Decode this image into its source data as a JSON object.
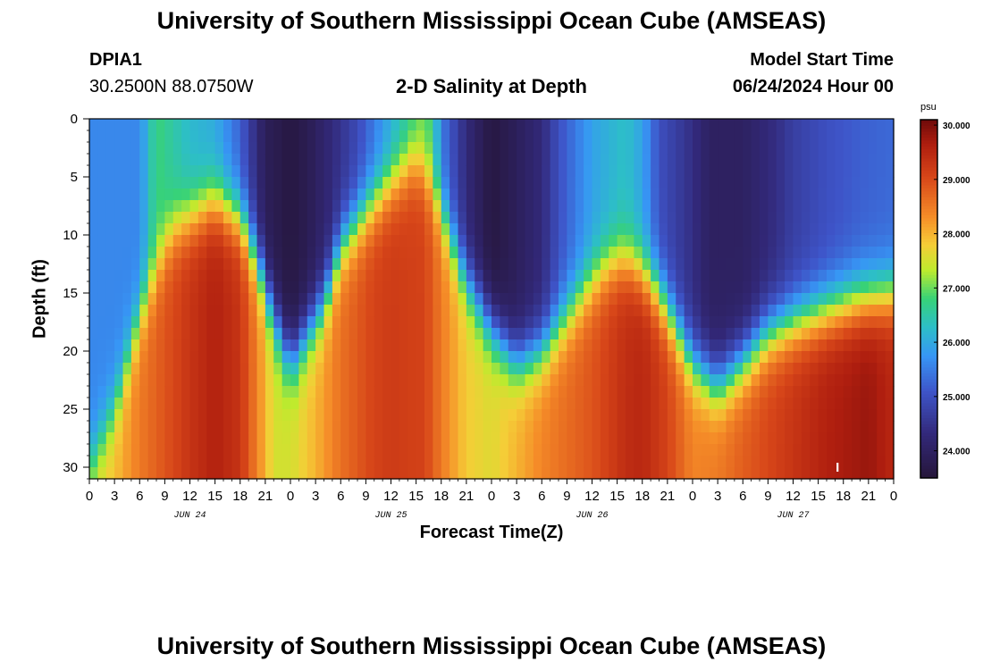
{
  "header": {
    "title": "University of Southern Mississippi Ocean Cube (AMSEAS)",
    "station_id": "DPIA1",
    "station_coords": "30.2500N  88.0750W",
    "plot_title": "2-D Salinity at Depth",
    "model_start_label": "Model Start Time",
    "model_start_value": "06/24/2024 Hour 00"
  },
  "footer": {
    "title": "University of Southern Mississippi Ocean Cube (AMSEAS)"
  },
  "chart_data": {
    "type": "heatmap",
    "title": "2-D Salinity at Depth",
    "xlabel": "Forecast Time(Z)",
    "ylabel": "Depth (ft)",
    "x_range_hours": [
      0,
      96
    ],
    "y_range_ft": [
      0,
      31
    ],
    "x_tick_labels": [
      "0",
      "3",
      "6",
      "9",
      "12",
      "15",
      "18",
      "21",
      "0",
      "3",
      "6",
      "9",
      "12",
      "15",
      "18",
      "21",
      "0",
      "3",
      "6",
      "9",
      "12",
      "15",
      "18",
      "21",
      "0",
      "3",
      "6",
      "9",
      "12",
      "15",
      "18",
      "21",
      "0"
    ],
    "y_ticks": [
      0,
      5,
      10,
      15,
      20,
      25,
      30
    ],
    "day_labels": [
      {
        "label": "JUN 24",
        "hour": 12
      },
      {
        "label": "JUN 25",
        "hour": 36
      },
      {
        "label": "JUN 26",
        "hour": 60
      },
      {
        "label": "JUN 27",
        "hour": 84
      }
    ],
    "colorbar": {
      "unit": "psu",
      "min": 23.5,
      "max": 30.1,
      "ticks": [
        "30.000",
        "29.000",
        "28.000",
        "27.000",
        "26.000",
        "25.000",
        "24.000"
      ],
      "tick_values": [
        30,
        29,
        28,
        27,
        26,
        25,
        24
      ]
    },
    "surface_salinity": {
      "hours": [
        0,
        6,
        8,
        12,
        15,
        18,
        20,
        21,
        24,
        26,
        30,
        32,
        36,
        40,
        41,
        42,
        45,
        48,
        50,
        54,
        56,
        60,
        64,
        66,
        68,
        72,
        74,
        78,
        82,
        84,
        88,
        92,
        96
      ],
      "psu": [
        25.6,
        25.6,
        26.8,
        26.2,
        26.0,
        25.2,
        24.3,
        23.9,
        23.6,
        23.8,
        24.5,
        24.9,
        26.0,
        27.0,
        26.6,
        25.5,
        24.3,
        23.6,
        23.8,
        24.3,
        25.0,
        25.9,
        26.3,
        25.9,
        25.0,
        24.4,
        24.0,
        24.0,
        24.4,
        24.7,
        25.0,
        25.2,
        25.3
      ]
    },
    "bottom_salinity": {
      "hours": [
        0,
        3,
        6,
        12,
        15,
        18,
        21,
        22,
        24,
        27,
        30,
        34,
        36,
        40,
        42,
        45,
        48,
        51,
        54,
        60,
        64,
        66,
        69,
        72,
        75,
        78,
        84,
        88,
        93,
        96
      ],
      "psu": [
        27.6,
        27.9,
        28.5,
        29.3,
        29.6,
        29.3,
        28.0,
        27.5,
        27.5,
        28.0,
        28.6,
        29.1,
        29.2,
        29.1,
        28.5,
        27.8,
        27.6,
        28.0,
        28.4,
        28.9,
        29.4,
        29.5,
        29.1,
        28.4,
        28.5,
        28.8,
        29.3,
        29.6,
        29.8,
        29.5
      ]
    },
    "halocline_depth_ft": {
      "hours": [
        0,
        3,
        6,
        9,
        10,
        12,
        15,
        18,
        20,
        22,
        24,
        28,
        30,
        33,
        36,
        39,
        41,
        43,
        45,
        48,
        51,
        54,
        57,
        60,
        62,
        64,
        66,
        68,
        72,
        75,
        78,
        81,
        84,
        88,
        92,
        96
      ],
      "ft": [
        30,
        25,
        17,
        11,
        9.5,
        8.5,
        7.0,
        8.5,
        12,
        17,
        21,
        16,
        11,
        8.0,
        5.5,
        3.5,
        6.0,
        10,
        14,
        18,
        21,
        20,
        17,
        14,
        12.5,
        12,
        13,
        15,
        21,
        23,
        21,
        18.5,
        17.5,
        16.5,
        15.5,
        15.0
      ]
    },
    "marker": {
      "label": "I",
      "hour": 89.3,
      "depth_ft": 30
    }
  }
}
